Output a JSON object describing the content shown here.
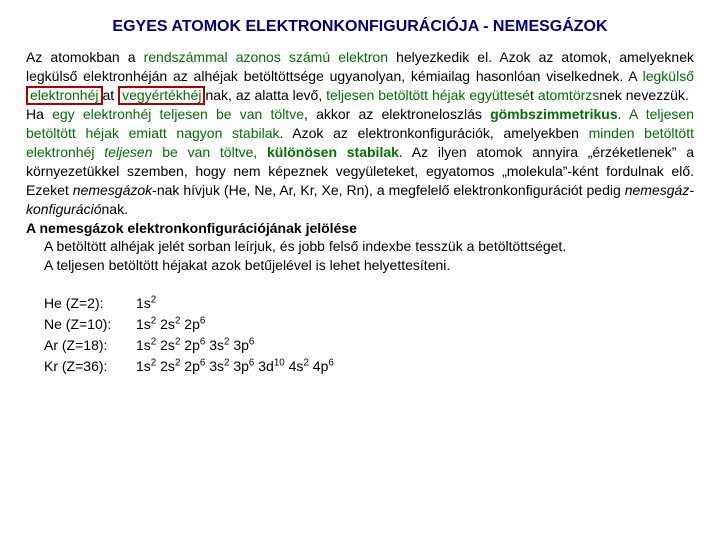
{
  "title": "EGYES ATOMOK ELEKTRONKONFIGURÁCIÓJA - NEMESGÁZOK",
  "para": {
    "p1_lead": "Az atomokban a ",
    "p1_green1": "rendszámmal azonos számú elektron",
    "p1_tail1": " helyezkedik el. Azok az atomok, amelyeknek legkülső elektronhéján az alhéjak betöltöttsége ugyanolyan, kémiailag hasonlóan viselkednek. A ",
    "p1_green2": "legkülső ",
    "p1_box1": "elektronhéj",
    "p1_mid": "at ",
    "p1_box2": "vegyértékhéj",
    "p1_tail2": "nak, az alatta levő, ",
    "p1_green3": "teljesen betöltött héjak együttesé",
    "p1_mid2": "t ",
    "p1_green4": "atomtörzs",
    "p1_tail3": "nek nevezzük.",
    "p2_lead": "Ha ",
    "p2_green1": "egy elektronhéj teljesen be van töltve",
    "p2_mid1": ", akkor az elektroneloszlás ",
    "p2_green2": "gömbszimmetrikus",
    "p2_mid2": ". ",
    "p2_green3": "A teljesen betöltött héjak emiatt nagyon stabilak",
    "p2_mid3": ". Azok az elektronkonfigurációk, amelyekben ",
    "p2_green4": "minden betöltött elektronhéj ",
    "p2_green4i": "teljesen",
    "p2_green4b": " be van töltve, ",
    "p2_green5": "különösen stabilak",
    "p2_mid4": ". Az ilyen atomok annyira „érzéketlenek” a környezetükkel szemben, hogy nem képeznek vegyületeket, egyatomos „molekula”-ként fordulnak elő. Ezeket ",
    "p2_i1": "nemesgázok",
    "p2_mid5": "-nak hívjuk (He, Ne, Ar, Kr, Xe, Rn), a megfelelő elektronkonfigurációt pedig ",
    "p2_i2": "nemesgáz-konfiguráció",
    "p2_tail": "nak.",
    "p3_heading": "A nemesgázok elektronkonfigurációjának jelölése",
    "p3_line1": "A betöltött alhéjak jelét sorban leírjuk, és jobb felső indexbe tesszük a betöltöttséget.",
    "p3_line2": "A teljesen betöltött héjakat azok betűjelével is lehet helyettesíteni."
  },
  "configs": [
    {
      "label": "He (Z=2):",
      "shells": [
        [
          "1s",
          "2"
        ]
      ]
    },
    {
      "label": "Ne (Z=10):",
      "shells": [
        [
          "1s",
          "2"
        ],
        [
          "2s",
          "2"
        ],
        [
          "2p",
          "6"
        ]
      ]
    },
    {
      "label": "Ar (Z=18):",
      "shells": [
        [
          "1s",
          "2"
        ],
        [
          "2s",
          "2"
        ],
        [
          "2p",
          "6"
        ],
        [
          "3s",
          "2"
        ],
        [
          "3p",
          "6"
        ]
      ]
    },
    {
      "label": "Kr (Z=36):",
      "shells": [
        [
          "1s",
          "2"
        ],
        [
          "2s",
          "2"
        ],
        [
          "2p",
          "6"
        ],
        [
          "3s",
          "2"
        ],
        [
          "3p",
          "6"
        ],
        [
          "3d",
          "10"
        ],
        [
          "4s",
          "2"
        ],
        [
          "4p",
          "6"
        ]
      ]
    }
  ],
  "colors": {
    "title": "#000080",
    "green": "#007000",
    "box_border": "#b00000",
    "text": "#000000",
    "background": "#ffffff"
  }
}
